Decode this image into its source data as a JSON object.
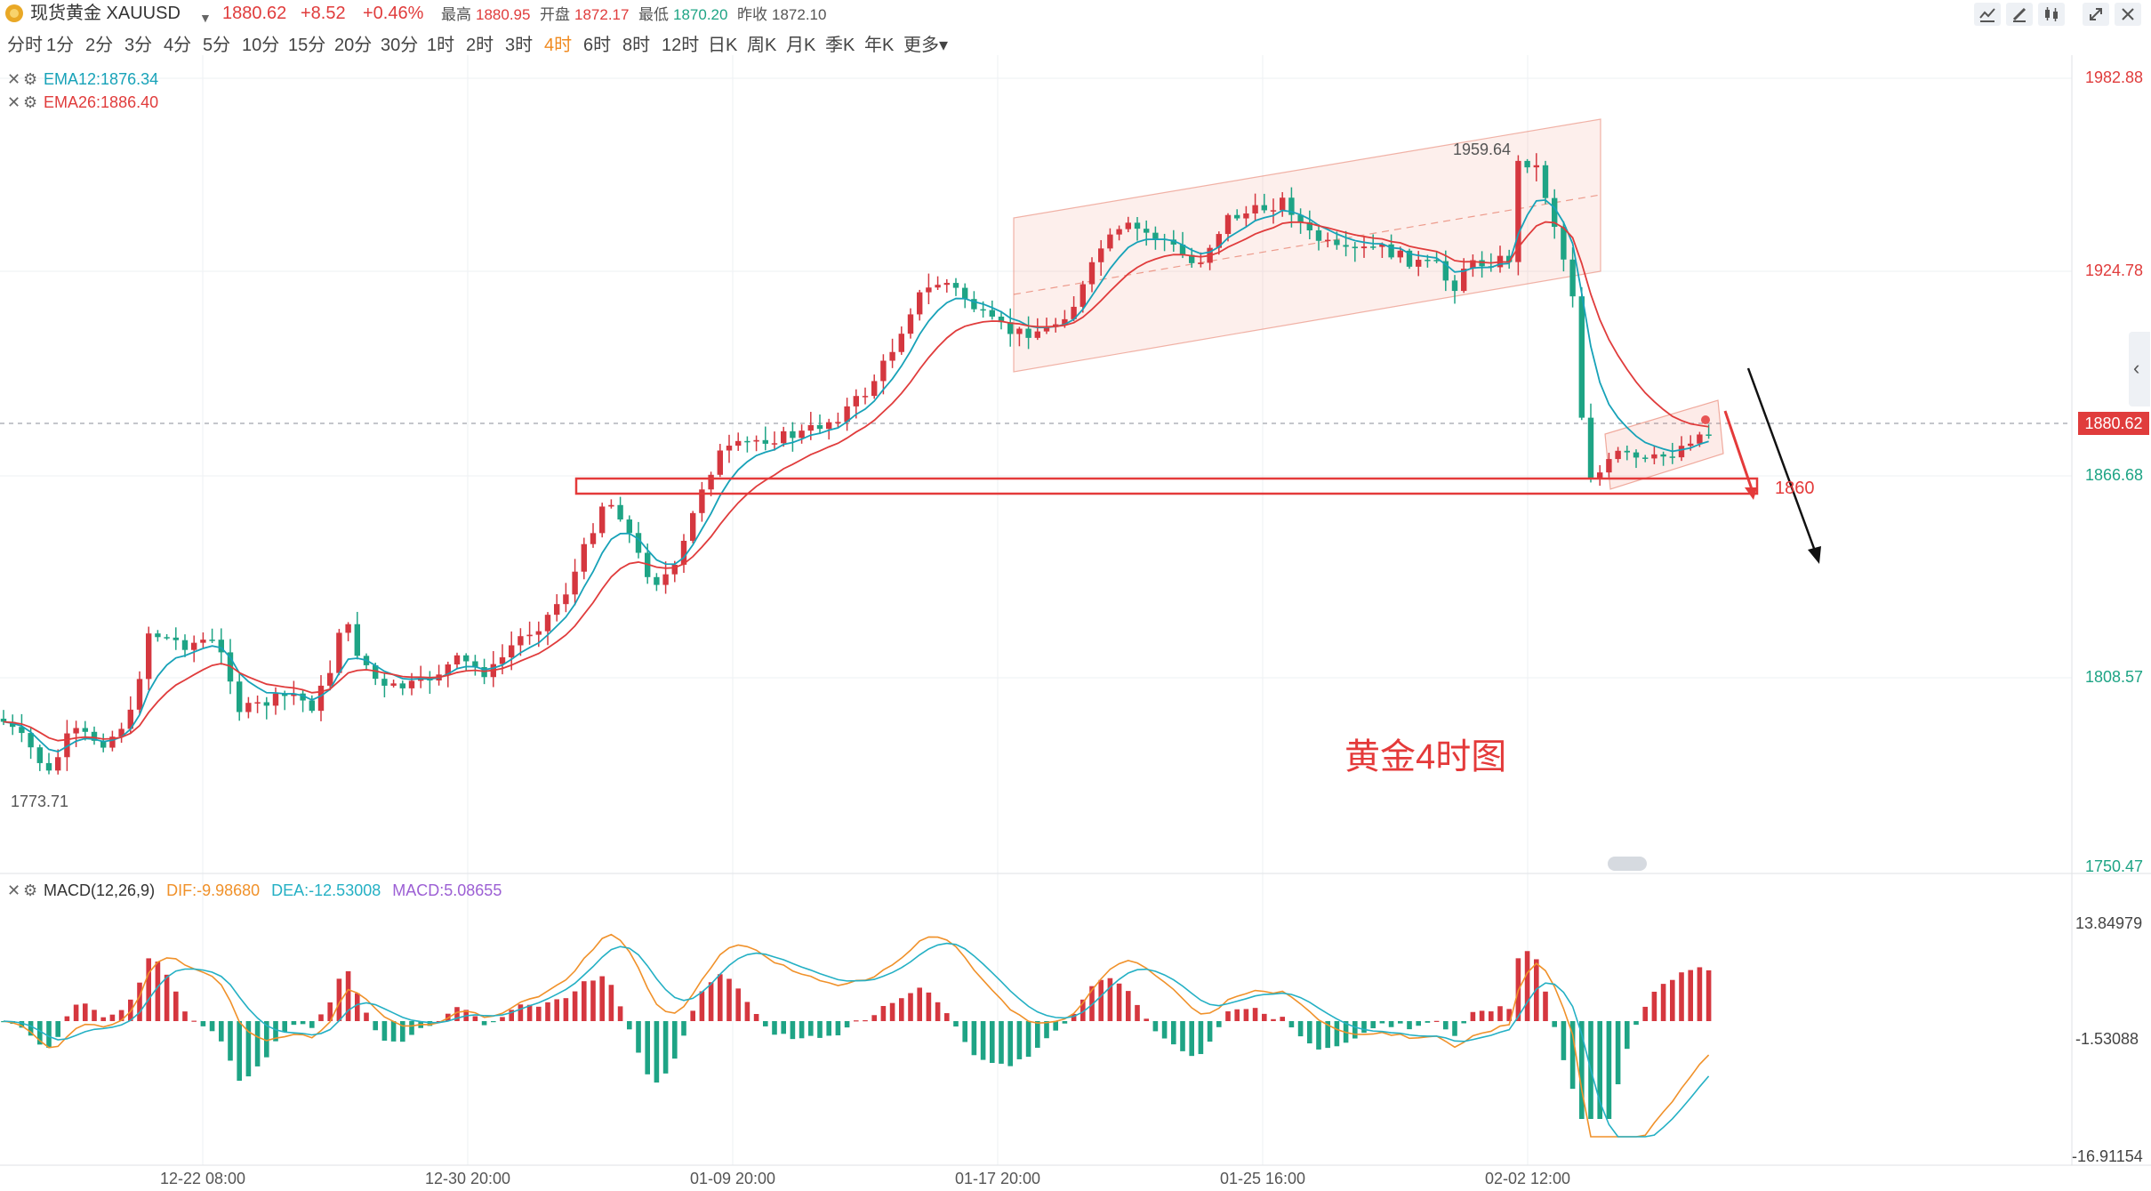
{
  "header": {
    "instrument": "现货黄金 XAUUSD",
    "price": "1880.62",
    "change": "+8.52",
    "change_pct": "+0.46%",
    "high_label": "最高",
    "high": "1880.95",
    "open_label": "开盘",
    "open": "1872.17",
    "low_label": "最低",
    "low": "1870.20",
    "prev_label": "昨收",
    "prev": "1872.10"
  },
  "toolbar": {
    "icons": [
      "line-chart-icon",
      "pen-icon",
      "candles-icon",
      "expand-icon",
      "close-icon"
    ]
  },
  "intervals": {
    "items": [
      "分时",
      "1分",
      "2分",
      "3分",
      "4分",
      "5分",
      "10分",
      "15分",
      "20分",
      "30分",
      "1时",
      "2时",
      "3时",
      "4时",
      "6时",
      "8时",
      "12时",
      "日K",
      "周K",
      "月K",
      "季K",
      "年K",
      "更多"
    ],
    "active": "4时"
  },
  "legend": {
    "ema12": "EMA12:1876.34",
    "ema26": "EMA26:1886.40",
    "macd_title": "MACD(12,26,9)",
    "dif": "DIF:-9.98680",
    "dea": "DEA:-12.53008",
    "macd": "MACD:5.08655"
  },
  "price_axis": {
    "ticks": [
      "1982.88",
      "1924.78",
      "1866.68",
      "1808.57",
      "1750.47"
    ],
    "current": "1880.62"
  },
  "macd_axis": {
    "ticks": [
      "13.84979",
      "-1.53088",
      "-16.91154"
    ]
  },
  "time_axis": {
    "ticks": [
      "12-22 08:00",
      "12-30 20:00",
      "01-09 20:00",
      "01-17 20:00",
      "01-25 16:00",
      "02-02 12:00"
    ]
  },
  "annotations": {
    "peak": "1959.64",
    "trough": "1773.71",
    "support": "1860",
    "caption": "黄金4时图"
  },
  "colors": {
    "up": "#d5373f",
    "down": "#1ea485",
    "ema12": "#17a2b8",
    "ema26": "#e03c3c",
    "dif": "#f0912a",
    "dea": "#24b0c4",
    "macd_label": "#9c5fd4",
    "annotation": "#e43a3a"
  },
  "chart_data": {
    "type": "candlestick",
    "y_range": [
      1750.47,
      1982.88
    ],
    "macd_y_range": [
      -16.91154,
      13.84979
    ],
    "ema12_last": 1876.34,
    "ema26_last": 1886.4,
    "dif_last": -9.9868,
    "dea_last": -12.53008,
    "macd_last": 5.08655,
    "current_price": 1880.62,
    "peak": 1959.64,
    "trough": 1773.71,
    "support_level": 1860
  }
}
